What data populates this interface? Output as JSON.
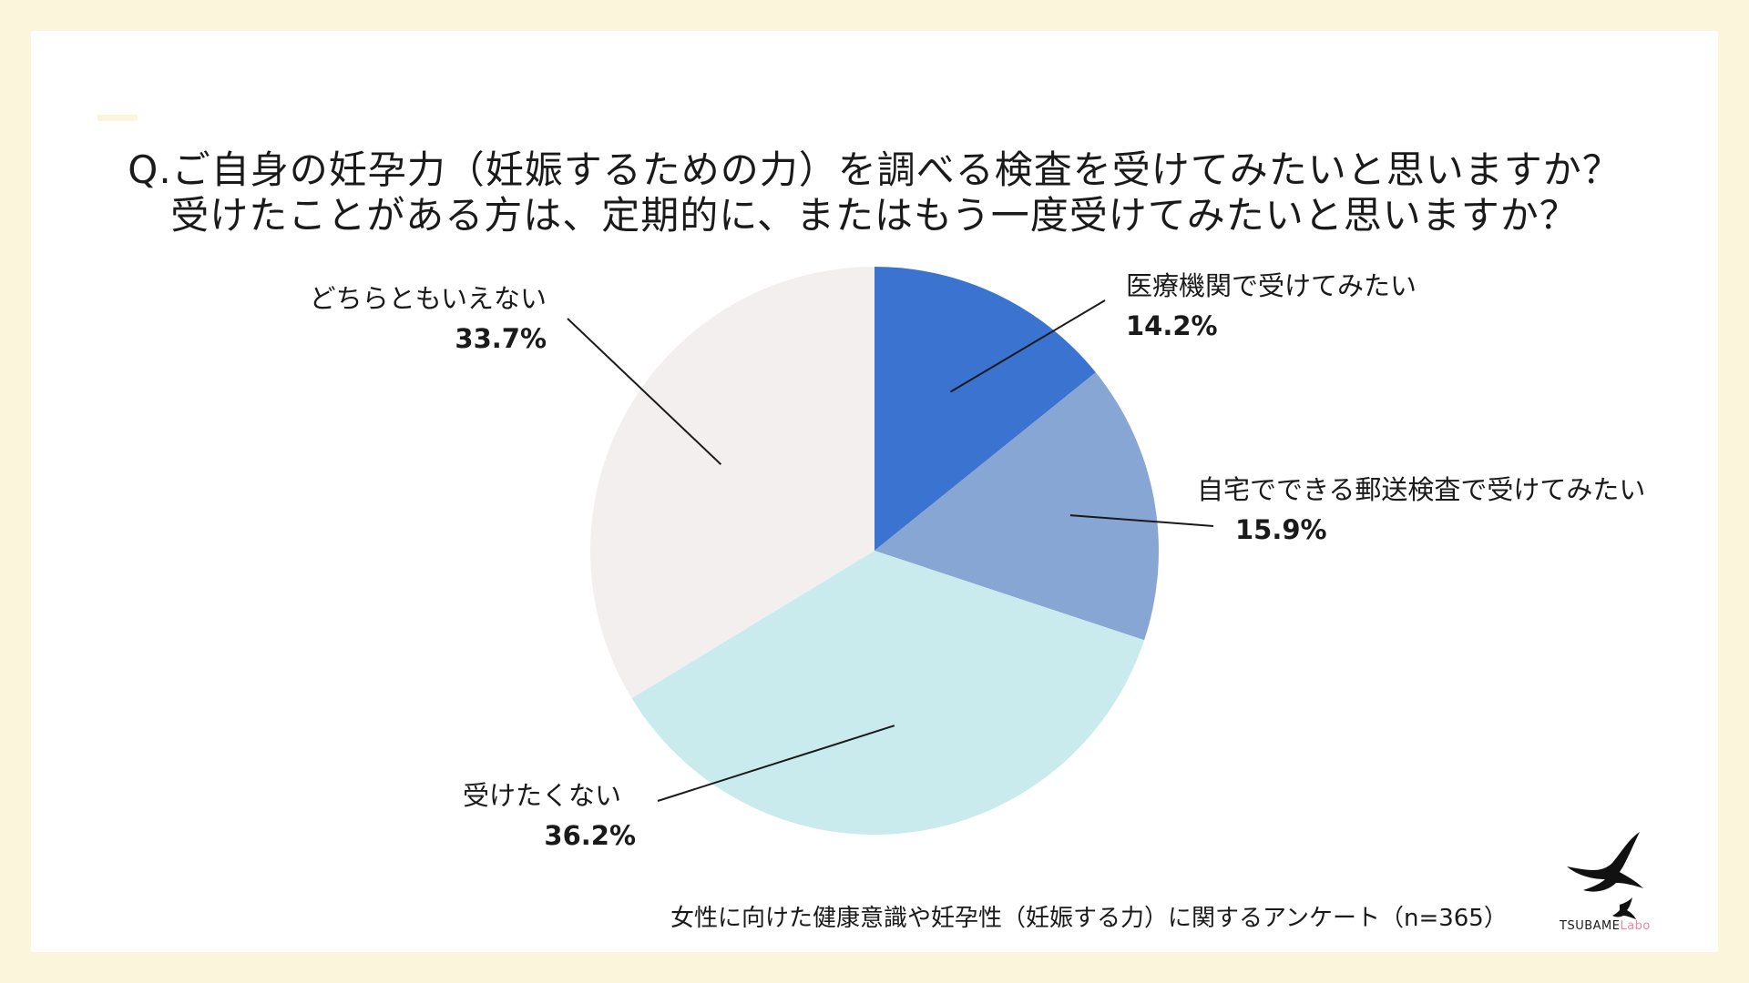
{
  "title": {
    "line1": "Q.ご自身の妊孕力（妊娠するための力）を調べる検査を受けてみたいと思いますか？",
    "line2": "受けたことがある方は、定期的に、またはもう一度受けてみたいと思いますか？"
  },
  "chart_data": {
    "type": "pie",
    "title": "Q.ご自身の妊孕力（妊娠するための力）を調べる検査を受けてみたいと思いますか？受けたことがある方は、定期的に、またはもう一度受けてみたいと思いますか？",
    "slices": [
      {
        "label": "医療機関で受けてみたい",
        "value": 14.2,
        "display": "14.2%",
        "color": "#3b73d1"
      },
      {
        "label": "自宅でできる郵送検査で受けてみたい",
        "value": 15.9,
        "display": "15.9%",
        "color": "#87a6d4"
      },
      {
        "label": "受けたくない",
        "value": 36.2,
        "display": "36.2%",
        "color": "#c9ebee"
      },
      {
        "label": "どちらともいえない",
        "value": 33.7,
        "display": "33.7%",
        "color": "#f2efee"
      }
    ],
    "start_angle": "12 o'clock",
    "direction": "clockwise"
  },
  "footnote": "女性に向けた健康意識や妊孕性（妊娠する力）に関するアンケート（n=365）",
  "logo": {
    "brand": "TSUBAME",
    "suffix": "Labo",
    "icon": "swallow-icon"
  },
  "colors": {
    "page_background": "#fbf6db",
    "card_background": "#ffffff",
    "leader_line": "#1a1a1a"
  }
}
